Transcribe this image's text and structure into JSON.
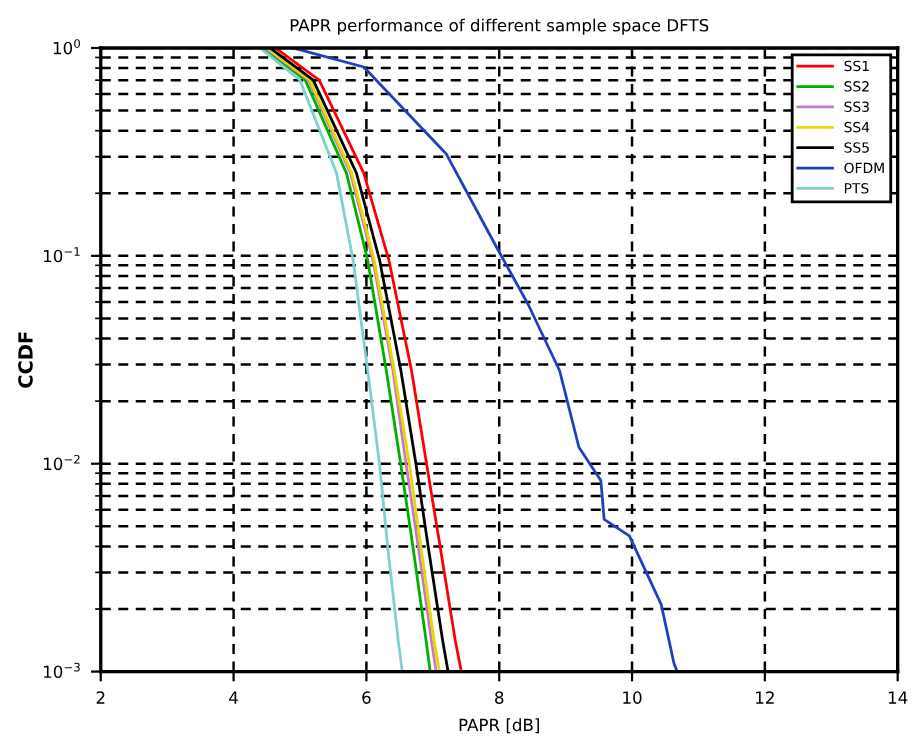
{
  "chart_data": {
    "type": "line",
    "title": "PAPR performance of different sample space DFTS",
    "xlabel": "PAPR [dB]",
    "ylabel": "CCDF",
    "log": "y",
    "grid": true,
    "legend": "top right",
    "line_style": "solid",
    "marker": "none",
    "xlim": [
      2,
      14
    ],
    "xticks": [
      2,
      4,
      6,
      8,
      10,
      12,
      14
    ],
    "ylim": [
      0.001,
      1
    ],
    "yticks": [
      {
        "value": 0.001,
        "label": "10$^{−3}$"
      },
      {
        "value": 0.01,
        "label": "10$^{−2}$"
      },
      {
        "value": 0.1,
        "label": "10$^{−1}$"
      },
      {
        "value": 1,
        "label": "10$^{0}$"
      }
    ],
    "series": [
      {
        "name": "SS1",
        "color": "#ff0000",
        "x": [
          4.63,
          5.29,
          5.96,
          6.34,
          6.68,
          6.91,
          7.11,
          7.34,
          7.43
        ],
        "values": [
          1,
          0.7,
          0.25,
          0.095,
          0.028,
          0.0098,
          0.004,
          0.0014,
          0.001
        ]
      },
      {
        "name": "SS2",
        "color": "#00b000",
        "x": [
          4.45,
          5.08,
          5.7,
          6.02,
          6.3,
          6.52,
          6.7,
          6.9,
          6.96
        ],
        "values": [
          1,
          0.7,
          0.25,
          0.095,
          0.028,
          0.0098,
          0.004,
          0.0014,
          0.001
        ]
      },
      {
        "name": "SS3",
        "color": "#c080c0",
        "x": [
          4.48,
          5.13,
          5.76,
          6.1,
          6.4,
          6.6,
          6.78,
          6.98,
          7.05
        ],
        "values": [
          1,
          0.7,
          0.25,
          0.095,
          0.028,
          0.0098,
          0.004,
          0.0014,
          0.001
        ]
      },
      {
        "name": "SS4",
        "color": "#e8d800",
        "x": [
          4.5,
          5.15,
          5.78,
          6.12,
          6.42,
          6.65,
          6.82,
          7.02,
          7.1
        ],
        "values": [
          1,
          0.7,
          0.25,
          0.095,
          0.028,
          0.0098,
          0.004,
          0.0014,
          0.001
        ]
      },
      {
        "name": "SS5",
        "color": "#000000",
        "x": [
          4.55,
          5.2,
          5.85,
          6.2,
          6.52,
          6.75,
          6.93,
          7.15,
          7.23
        ],
        "values": [
          1,
          0.7,
          0.25,
          0.095,
          0.028,
          0.0098,
          0.004,
          0.0014,
          0.001
        ]
      },
      {
        "name": "OFDM",
        "color": "#2040c0",
        "x": [
          4.9,
          5.96,
          7.2,
          7.96,
          8.44,
          8.91,
          9.2,
          9.53,
          9.58,
          9.96,
          10.44,
          10.63,
          10.68
        ],
        "values": [
          1,
          0.81,
          0.31,
          0.11,
          0.058,
          0.028,
          0.012,
          0.0083,
          0.0054,
          0.0045,
          0.0021,
          0.0011,
          0.001
        ]
      },
      {
        "name": "PTS",
        "color": "#80d0d0",
        "x": [
          4.4,
          5.0,
          5.55,
          5.8,
          6.02,
          6.2,
          6.32,
          6.48,
          6.54
        ],
        "values": [
          1,
          0.7,
          0.25,
          0.095,
          0.028,
          0.0098,
          0.004,
          0.0014,
          0.001
        ]
      }
    ]
  }
}
